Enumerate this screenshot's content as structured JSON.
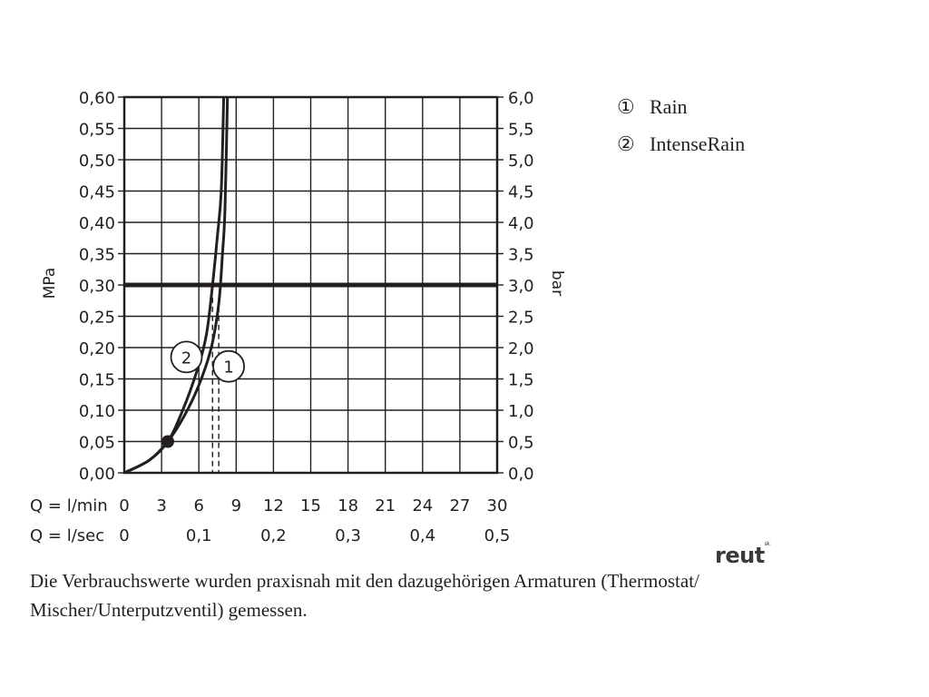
{
  "chart_data": {
    "type": "line",
    "left_axis": {
      "label": "MPa",
      "ylim": [
        0,
        0.6
      ],
      "ticks": [
        "0,00",
        "0,05",
        "0,10",
        "0,15",
        "0,20",
        "0,25",
        "0,30",
        "0,35",
        "0,40",
        "0,45",
        "0,50",
        "0,55",
        "0,60"
      ]
    },
    "right_axis": {
      "label": "bar",
      "ylim": [
        0,
        6.0
      ],
      "ticks": [
        "0,0",
        "0,5",
        "1,0",
        "1,5",
        "2,0",
        "2,5",
        "3,0",
        "3,5",
        "4,0",
        "4,5",
        "5,0",
        "5,5",
        "6,0"
      ]
    },
    "x_axis_lmin": {
      "label": "Q = l/min",
      "xlim": [
        0,
        30
      ],
      "ticks": [
        "0",
        "3",
        "6",
        "9",
        "12",
        "15",
        "18",
        "21",
        "24",
        "27",
        "30"
      ]
    },
    "x_axis_lsec": {
      "label": "Q = l/sec",
      "ticks": [
        {
          "value": 0,
          "label": "0"
        },
        {
          "value": 0.1,
          "label": "0,1"
        },
        {
          "value": 0.2,
          "label": "0,2"
        },
        {
          "value": 0.3,
          "label": "0,3"
        },
        {
          "value": 0.4,
          "label": "0,4"
        },
        {
          "value": 0.5,
          "label": "0,5"
        }
      ]
    },
    "grid": true,
    "reference_line_mpa": 0.3,
    "start_point": {
      "x": 3.5,
      "y": 0.05
    },
    "series": [
      {
        "name": "Rain",
        "marker": "1",
        "points": [
          [
            0,
            0
          ],
          [
            2,
            0.02
          ],
          [
            3.5,
            0.05
          ],
          [
            4.8,
            0.09
          ],
          [
            6,
            0.14
          ],
          [
            7,
            0.2
          ],
          [
            7.6,
            0.27
          ],
          [
            7.9,
            0.35
          ],
          [
            8.1,
            0.42
          ],
          [
            8.3,
            0.6
          ]
        ],
        "flow_at_ref": 7.6
      },
      {
        "name": "IntenseRain",
        "marker": "2",
        "points": [
          [
            0,
            0
          ],
          [
            2,
            0.02
          ],
          [
            3.5,
            0.05
          ],
          [
            4.7,
            0.1
          ],
          [
            5.8,
            0.16
          ],
          [
            6.6,
            0.22
          ],
          [
            7.1,
            0.3
          ],
          [
            7.5,
            0.38
          ],
          [
            7.8,
            0.45
          ],
          [
            8.0,
            0.6
          ]
        ],
        "flow_at_ref": 7.1
      }
    ]
  },
  "legend": [
    {
      "symbol": "①",
      "label": "Rain"
    },
    {
      "symbol": "②",
      "label": "IntenseRain"
    }
  ],
  "logo": {
    "text": "reut",
    "sup": "sk"
  },
  "caption": {
    "line1": "Die Verbrauchswerte wurden praxisnah mit den dazugehörigen Armaturen (Thermostat/",
    "line2": "Mischer/Unterputzventil) gemessen."
  }
}
